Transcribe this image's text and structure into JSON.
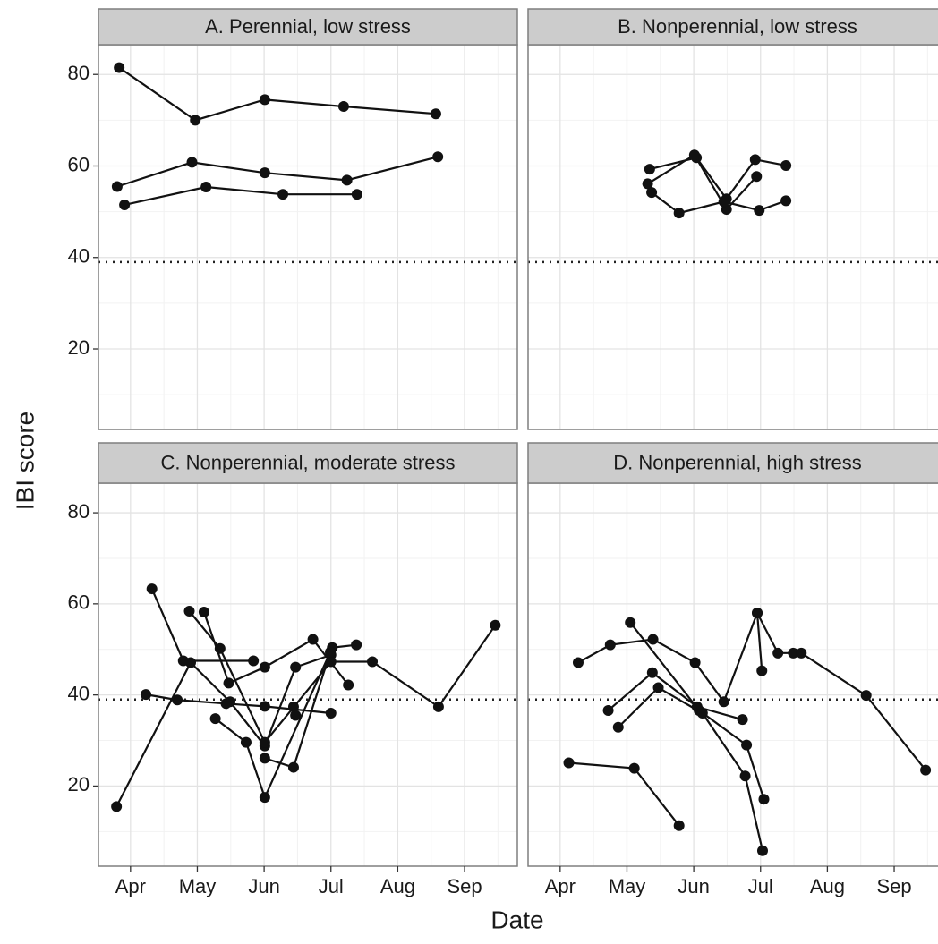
{
  "chart_data": {
    "type": "line",
    "x_label": "Date",
    "y_label": "IBI score",
    "xlim": [
      3.52,
      9.79
    ],
    "xticks": [
      {
        "value": 4,
        "label": "Apr"
      },
      {
        "value": 5,
        "label": "May"
      },
      {
        "value": 6,
        "label": "Jun"
      },
      {
        "value": 7,
        "label": "Jul"
      },
      {
        "value": 8,
        "label": "Aug"
      },
      {
        "value": 9,
        "label": "Sep"
      }
    ],
    "ylim": [
      2.4,
      86.5
    ],
    "yticks": [
      20,
      40,
      60,
      80
    ],
    "grid": true,
    "threshold": 39,
    "color": "#111111",
    "panels": [
      {
        "title": "A. Perennial, low stress",
        "series": [
          {
            "x": [
              3.83,
              4.97,
              6.01,
              7.19,
              8.57
            ],
            "values": [
              81.5,
              70,
              74.5,
              73,
              71.4
            ]
          },
          {
            "x": [
              3.8,
              4.92,
              6.01,
              7.24,
              8.6
            ],
            "values": [
              55.5,
              60.8,
              58.5,
              56.9,
              62
            ]
          },
          {
            "x": [
              3.91,
              5.13,
              6.28,
              7.39
            ],
            "values": [
              51.5,
              55.4,
              53.8,
              53.8
            ]
          }
        ]
      },
      {
        "title": "B. Nonperennial, low stress",
        "series": [
          {
            "x": [
              5.34,
              6.04,
              6.49,
              6.92,
              7.38
            ],
            "values": [
              59.3,
              61.8,
              52.8,
              61.4,
              60.1
            ]
          },
          {
            "x": [
              5.31,
              6.01,
              6.49,
              6.94
            ],
            "values": [
              56.1,
              62.4,
              50.5,
              57.7
            ]
          },
          {
            "x": [
              5.37,
              5.78,
              6.45,
              6.98,
              7.38
            ],
            "values": [
              54.2,
              49.7,
              52.2,
              50.3,
              52.4
            ]
          }
        ]
      },
      {
        "title": "C. Nonperennial, moderate stress",
        "series": [
          {
            "x": [
              4.32,
              4.79,
              5.84
            ],
            "values": [
              63.3,
              47.5,
              47.5
            ]
          },
          {
            "x": [
              3.79,
              4.9,
              5.49,
              6.01,
              6.47,
              7.0
            ],
            "values": [
              15.5,
              47.1,
              38.5,
              28.8,
              46.1,
              48.8
            ]
          },
          {
            "x": [
              4.23,
              4.7,
              5.43,
              6.01,
              7.0
            ],
            "values": [
              40.1,
              38.9,
              38.1,
              37.5,
              36.0
            ]
          },
          {
            "x": [
              4.88,
              5.34,
              6.01,
              7.0,
              7.62,
              8.61,
              9.46
            ],
            "values": [
              58.4,
              50.2,
              29.6,
              47.3,
              47.3,
              37.4,
              55.3
            ]
          },
          {
            "x": [
              5.1,
              5.47,
              6.01,
              6.73,
              7.26
            ],
            "values": [
              58.2,
              42.6,
              46.1,
              52.2,
              42.2
            ]
          },
          {
            "x": [
              5.27,
              5.73,
              6.01,
              7.02,
              7.38
            ],
            "values": [
              34.8,
              29.6,
              17.5,
              50.4,
              51.0
            ]
          },
          {
            "x": [
              6.01,
              6.44,
              6.99
            ],
            "values": [
              26.1,
              24.1,
              49.4
            ]
          },
          {
            "x": [
              6.44,
              6.47
            ],
            "values": [
              37.4,
              35.5
            ]
          }
        ]
      },
      {
        "title": "D. Nonperennial, high stress",
        "series": [
          {
            "x": [
              4.27,
              4.75,
              5.39,
              6.02,
              6.45,
              6.95,
              7.26,
              7.49,
              7.61,
              8.58,
              9.47
            ],
            "values": [
              47.1,
              51.0,
              52.2,
              47.1,
              38.5,
              58.0,
              49.2,
              49.2,
              49.2,
              39.9,
              23.5
            ]
          },
          {
            "x": [
              5.05,
              6.08,
              6.79,
              7.05
            ],
            "values": [
              55.9,
              36.6,
              29.0,
              17.1
            ]
          },
          {
            "x": [
              4.72,
              5.38,
              6.05,
              6.73
            ],
            "values": [
              36.6,
              44.9,
              37.4,
              34.6
            ]
          },
          {
            "x": [
              4.87,
              5.47,
              6.13,
              6.77,
              7.03
            ],
            "values": [
              32.9,
              41.6,
              36.0,
              22.2,
              5.8
            ]
          },
          {
            "x": [
              4.13,
              5.11,
              5.78
            ],
            "values": [
              25.1,
              23.9,
              11.3
            ]
          },
          {
            "x": [
              6.95,
              7.02
            ],
            "values": [
              58.0,
              45.3
            ]
          }
        ]
      }
    ]
  }
}
